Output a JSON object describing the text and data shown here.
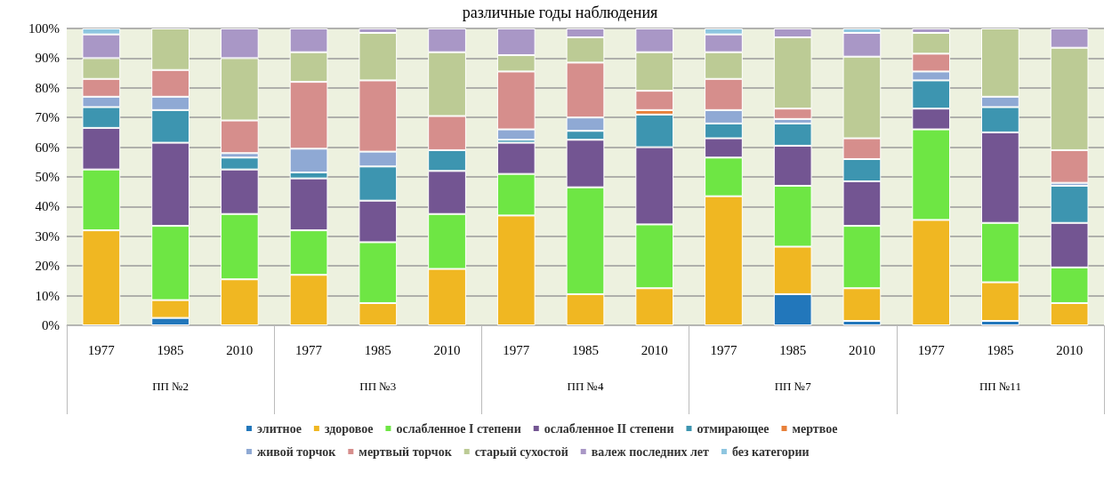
{
  "chart_data": {
    "type": "bar",
    "stacked": true,
    "title": "различные годы наблюдения",
    "categories": [
      "1977",
      "1985",
      "2010",
      "1977",
      "1985",
      "2010",
      "1977",
      "1985",
      "2010",
      "1977",
      "1985",
      "2010",
      "1977",
      "1985",
      "2010"
    ],
    "annotations": [
      "ПП №2",
      "ПП №3",
      "ПП №4",
      "ПП №7",
      "ПП №11"
    ],
    "series": [
      {
        "name": "элитное",
        "color": "#2277bb",
        "values": [
          0,
          2.5,
          0,
          0,
          null,
          0,
          0,
          null,
          0,
          null,
          10.5,
          1.5,
          0,
          1.5,
          0
        ]
      },
      {
        "name": "здоровое",
        "color": "#f0b722",
        "values": [
          32,
          6,
          15.5,
          17,
          7.5,
          19,
          37,
          10.5,
          12.5,
          43.5,
          16,
          11,
          35.5,
          13,
          7.5
        ]
      },
      {
        "name": "ослабленное I степени",
        "color": "#6ee644",
        "values": [
          20.5,
          25,
          22,
          15,
          20.5,
          18.5,
          14,
          36,
          21.5,
          13,
          20.5,
          21,
          30.5,
          20,
          12
        ]
      },
      {
        "name": "ослабленное II степени",
        "color": "#735592",
        "values": [
          14,
          28,
          15,
          17.5,
          14,
          14.5,
          10.5,
          16,
          26,
          6.5,
          13.5,
          15,
          7,
          30.5,
          15
        ]
      },
      {
        "name": "отмирающее",
        "color": "#3d95b0",
        "values": [
          7,
          11,
          4,
          2,
          11.5,
          7,
          1,
          3,
          11,
          5,
          7.5,
          7.5,
          9.5,
          8.5,
          12.5
        ]
      },
      {
        "name": "мертвое",
        "color": "#e8803a",
        "values": [
          0,
          0,
          0,
          0,
          0,
          0,
          0,
          0,
          1.5,
          0,
          0,
          0,
          0,
          0,
          0
        ]
      },
      {
        "name": "живой торчок",
        "color": "#8fa9d4",
        "values": [
          3.5,
          4.5,
          1.5,
          8,
          5,
          0,
          3.5,
          4.5,
          null,
          4.5,
          1.5,
          0,
          3,
          3.5,
          1
        ]
      },
      {
        "name": "мертвый торчок",
        "color": "#d68e8c",
        "values": [
          6,
          9,
          11,
          22.5,
          24,
          11.5,
          19.5,
          18.5,
          6.5,
          10.5,
          3.5,
          7,
          6,
          null,
          11
        ]
      },
      {
        "name": "старый сухостой",
        "color": "#bccb95",
        "values": [
          7,
          14,
          21,
          10,
          16,
          21.5,
          5.5,
          8.5,
          13,
          9,
          24,
          27.5,
          7,
          23,
          34.5
        ]
      },
      {
        "name": "валеж последних лет",
        "color": "#a997c6",
        "values": [
          8,
          0,
          10,
          8,
          1.5,
          8,
          9,
          3,
          8,
          6,
          3,
          8,
          1.5,
          0,
          6.5
        ]
      },
      {
        "name": "без категории",
        "color": "#8ec6e0",
        "values": [
          2,
          0,
          0,
          0,
          0,
          0,
          0,
          0,
          0,
          2,
          0,
          1.5,
          0,
          0,
          0
        ]
      }
    ],
    "ylim": [
      0,
      100
    ],
    "yticks": [
      {
        "value": 0,
        "label": "0%"
      },
      {
        "value": 10,
        "label": "10%"
      },
      {
        "value": 20,
        "label": "20%"
      },
      {
        "value": 30,
        "label": "30%"
      },
      {
        "value": 40,
        "label": "40%"
      },
      {
        "value": 50,
        "label": "50%"
      },
      {
        "value": 60,
        "label": "60%"
      },
      {
        "value": 70,
        "label": "70%"
      },
      {
        "value": 80,
        "label": "80%"
      },
      {
        "value": 90,
        "label": "90%"
      },
      {
        "value": 100,
        "label": "100%"
      }
    ],
    "grid": "y",
    "legend": "bottom"
  }
}
